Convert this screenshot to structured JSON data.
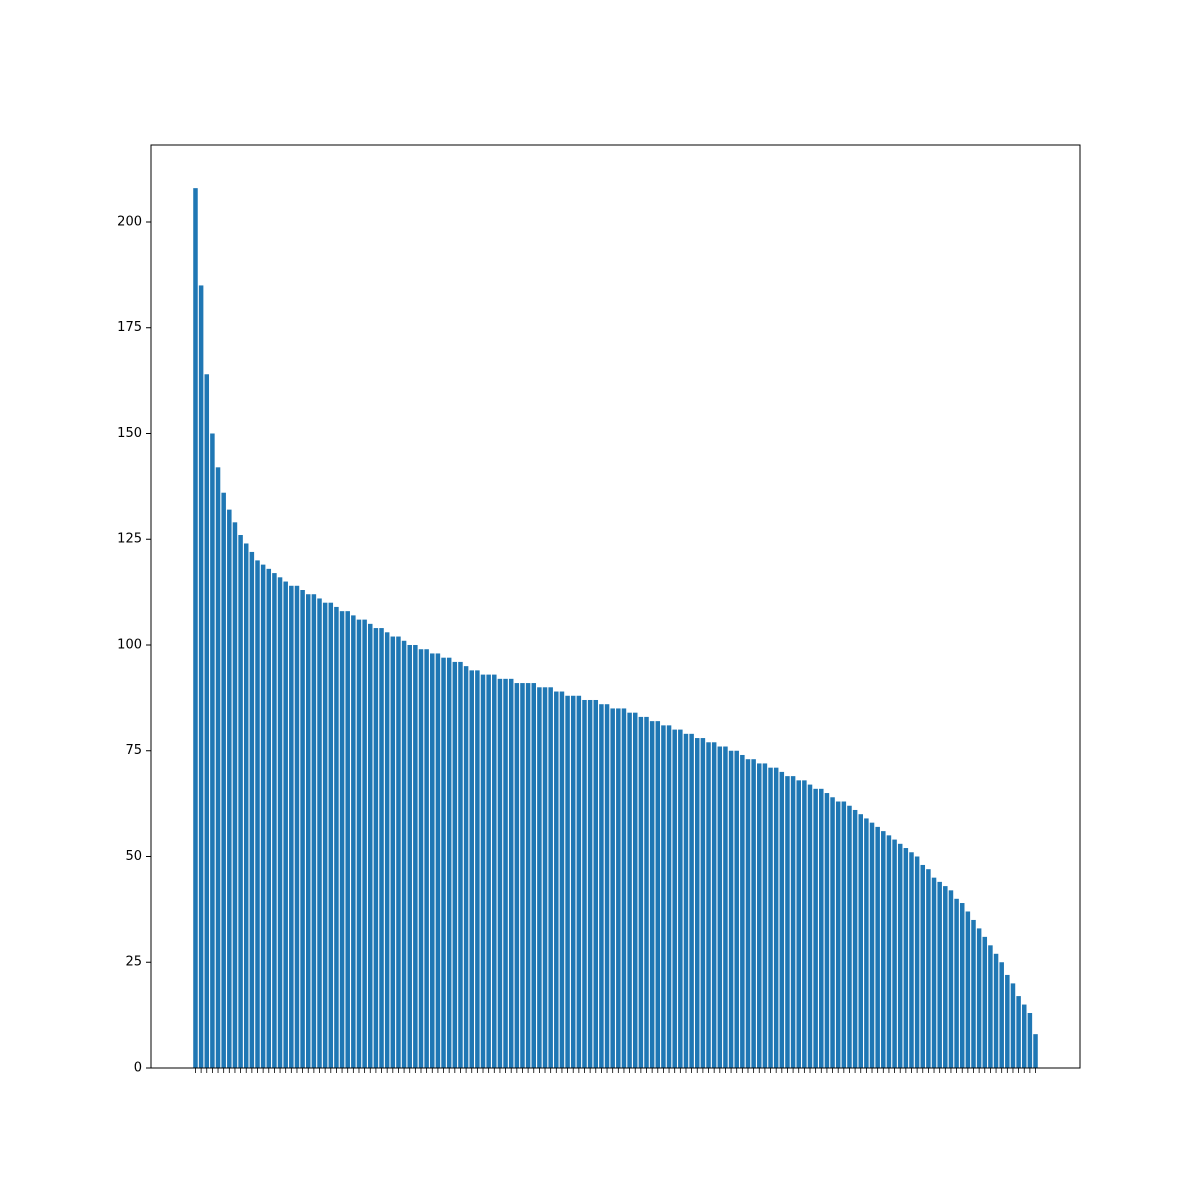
{
  "chart_data": {
    "type": "bar",
    "color": "#1f77b4",
    "categories": [
      null,
      null,
      null,
      null,
      null,
      null,
      null,
      null,
      null,
      null,
      null,
      null,
      null,
      null,
      null,
      null,
      null,
      null,
      null,
      null,
      null,
      null,
      null,
      null,
      null,
      null,
      null,
      null,
      null,
      null,
      null,
      null,
      null,
      null,
      null,
      null,
      null,
      null,
      null,
      null,
      null,
      null,
      null,
      null,
      null,
      null,
      null,
      null,
      null,
      null,
      null,
      null,
      null,
      null,
      null,
      null,
      null,
      null,
      null,
      null,
      null,
      null,
      null,
      null,
      null,
      null,
      null,
      null,
      null,
      null,
      null,
      null,
      null,
      null,
      null,
      null,
      null,
      null,
      null,
      null,
      null,
      null,
      null,
      null,
      null,
      null,
      null,
      null,
      null,
      null,
      null,
      null,
      null,
      null,
      null,
      null,
      null,
      null,
      null,
      null,
      null,
      null,
      null,
      null,
      null,
      null,
      null,
      null,
      null,
      null,
      null,
      null,
      null,
      null,
      null,
      null,
      null,
      null,
      null,
      null,
      null,
      null,
      null,
      null,
      null,
      null,
      null,
      null,
      null,
      null,
      null,
      null,
      null,
      null,
      null,
      null,
      null,
      null,
      null,
      null,
      null,
      null,
      null,
      null,
      null,
      null,
      null,
      null,
      null,
      null
    ],
    "values": [
      208,
      185,
      164,
      150,
      142,
      136,
      132,
      129,
      126,
      124,
      122,
      120,
      119,
      118,
      117,
      116,
      115,
      114,
      114,
      113,
      112,
      112,
      111,
      110,
      110,
      109,
      108,
      108,
      107,
      106,
      106,
      105,
      104,
      104,
      103,
      102,
      102,
      101,
      100,
      100,
      99,
      99,
      98,
      98,
      97,
      97,
      96,
      96,
      95,
      94,
      94,
      93,
      93,
      93,
      92,
      92,
      92,
      91,
      91,
      91,
      91,
      90,
      90,
      90,
      89,
      89,
      88,
      88,
      88,
      87,
      87,
      87,
      86,
      86,
      85,
      85,
      85,
      84,
      84,
      83,
      83,
      82,
      82,
      81,
      81,
      80,
      80,
      79,
      79,
      78,
      78,
      77,
      77,
      76,
      76,
      75,
      75,
      74,
      73,
      73,
      72,
      72,
      71,
      71,
      70,
      69,
      69,
      68,
      68,
      67,
      66,
      66,
      65,
      64,
      63,
      63,
      62,
      61,
      60,
      59,
      58,
      57,
      56,
      55,
      54,
      53,
      52,
      51,
      50,
      48,
      47,
      45,
      44,
      43,
      42,
      40,
      39,
      37,
      35,
      33,
      31,
      29,
      27,
      25,
      22,
      20,
      17,
      15,
      13,
      8
    ],
    "ylim": [
      0,
      218.2
    ],
    "yticks": [
      0,
      25,
      50,
      75,
      100,
      125,
      150,
      175,
      200
    ]
  }
}
